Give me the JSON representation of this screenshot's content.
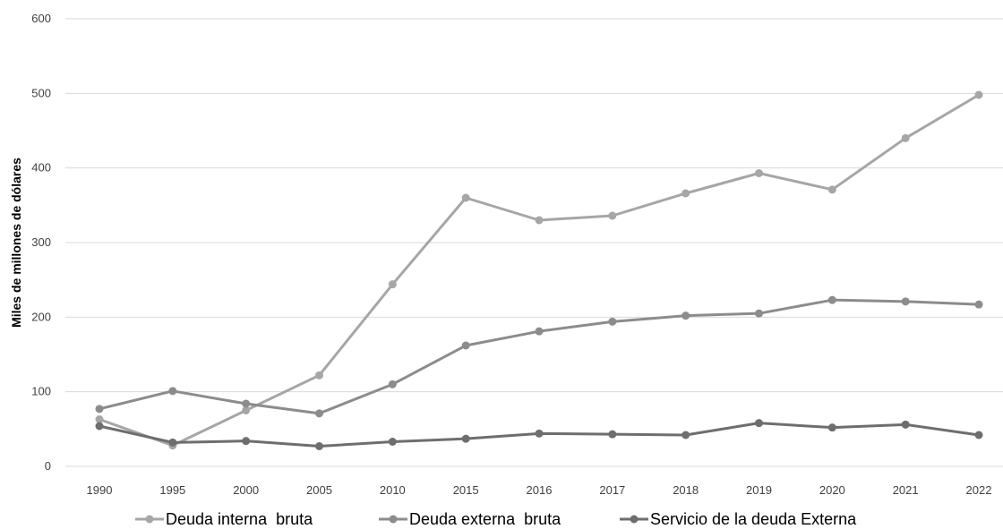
{
  "chart_data": {
    "type": "line",
    "ylabel": "Miles de millones de dólares",
    "xlabel": "",
    "title": "",
    "ylim": [
      0,
      600
    ],
    "yticks": [
      0,
      100,
      200,
      300,
      400,
      500,
      600
    ],
    "grid": true,
    "legend_position": "bottom",
    "categories": [
      "1990",
      "1995",
      "2000",
      "2005",
      "2010",
      "2015",
      "2016",
      "2017",
      "2018",
      "2019",
      "2020",
      "2021",
      "2022"
    ],
    "series": [
      {
        "name": "Deuda interna  bruta",
        "color": "#a6a6a6",
        "values": [
          63,
          28,
          75,
          122,
          244,
          360,
          330,
          336,
          366,
          393,
          371,
          440,
          498
        ]
      },
      {
        "name": "Deuda externa  bruta",
        "color": "#8c8c8c",
        "values": [
          77,
          101,
          84,
          71,
          110,
          162,
          181,
          194,
          202,
          205,
          223,
          221,
          217
        ]
      },
      {
        "name": "Servicio de la deuda Externa",
        "color": "#6e6e6e",
        "values": [
          54,
          32,
          34,
          27,
          33,
          37,
          44,
          43,
          42,
          58,
          52,
          56,
          42
        ]
      }
    ]
  }
}
